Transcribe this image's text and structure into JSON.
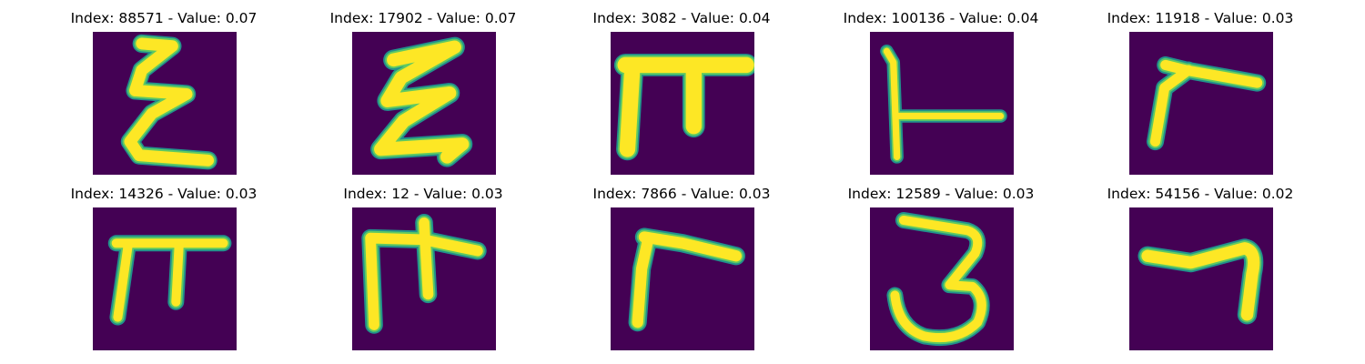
{
  "figure": {
    "panels": [
      {
        "title": "Index: 88571 - Value: 0.07",
        "glyph": "epsilon-character"
      },
      {
        "title": "Index: 17902 - Value: 0.07",
        "glyph": "epsilon-character"
      },
      {
        "title": "Index: 3082 - Value: 0.04",
        "glyph": "pi-character"
      },
      {
        "title": "Index: 100136 - Value: 0.04",
        "glyph": "perpendicular-character"
      },
      {
        "title": "Index: 11918 - Value: 0.03",
        "glyph": "gamma-character"
      },
      {
        "title": "Index: 14326 - Value: 0.03",
        "glyph": "pi-character"
      },
      {
        "title": "Index: 12 - Value: 0.03",
        "glyph": "pi-character"
      },
      {
        "title": "Index: 7866 - Value: 0.03",
        "glyph": "gamma-character"
      },
      {
        "title": "Index: 12589 - Value: 0.03",
        "glyph": "three-character"
      },
      {
        "title": "Index: 54156 - Value: 0.02",
        "glyph": "hook-character"
      }
    ],
    "colors": {
      "background": "#440154",
      "stroke_edge": "#21918c",
      "stroke_mid": "#5ec962",
      "stroke_core": "#fde725"
    }
  }
}
